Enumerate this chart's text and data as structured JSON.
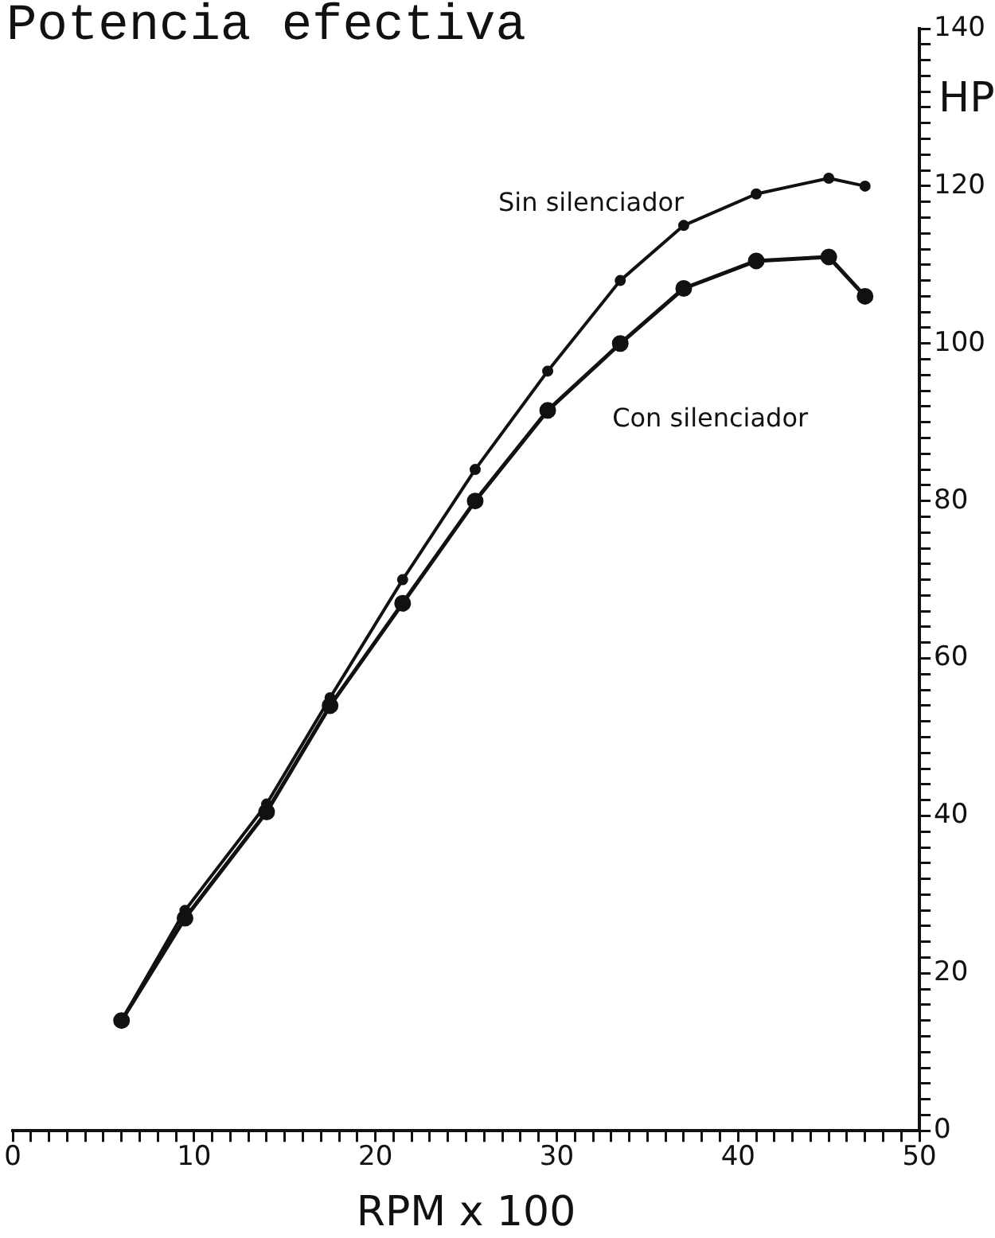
{
  "chart_data": {
    "type": "line",
    "title": "Potencia efectiva",
    "xlabel": "RPM x 100",
    "ylabel": "HP",
    "x": [
      6,
      9.5,
      14,
      17.5,
      21.5,
      25.5,
      29.5,
      33.5,
      37,
      41,
      45,
      47
    ],
    "series": [
      {
        "name": "Sin silenciador",
        "color": "#111111",
        "values": [
          14,
          28,
          41.5,
          55,
          70,
          84,
          96.5,
          108,
          115,
          119,
          121,
          120
        ]
      },
      {
        "name": "Con silenciador",
        "color": "#111111",
        "values": [
          14,
          27,
          40.5,
          54,
          67,
          80,
          91.5,
          100,
          107,
          110.5,
          111,
          106
        ]
      }
    ],
    "xlim": [
      0,
      50
    ],
    "ylim": [
      0,
      140
    ],
    "xticks": [
      0,
      {
        "value": 1,
        "label": null
      },
      {
        "value": 2,
        "label": null
      },
      {
        "value": 3,
        "label": null
      },
      {
        "value": 4,
        "label": null
      },
      {
        "value": 5,
        "label": null
      },
      {
        "value": 6,
        "label": null
      },
      {
        "value": 7,
        "label": null
      },
      {
        "value": 8,
        "label": null
      },
      {
        "value": 9,
        "label": null
      },
      10,
      {
        "value": 11,
        "label": null
      },
      {
        "value": 12,
        "label": null
      },
      {
        "value": 13,
        "label": null
      },
      {
        "value": 14,
        "label": null
      },
      {
        "value": 15,
        "label": null
      },
      {
        "value": 16,
        "label": null
      },
      {
        "value": 17,
        "label": null
      },
      {
        "value": 18,
        "label": null
      },
      {
        "value": 19,
        "label": null
      },
      20,
      {
        "value": 21,
        "label": null
      },
      {
        "value": 22,
        "label": null
      },
      {
        "value": 23,
        "label": null
      },
      {
        "value": 24,
        "label": null
      },
      {
        "value": 25,
        "label": null
      },
      {
        "value": 26,
        "label": null
      },
      {
        "value": 27,
        "label": null
      },
      {
        "value": 28,
        "label": null
      },
      {
        "value": 29,
        "label": null
      },
      30,
      {
        "value": 31,
        "label": null
      },
      {
        "value": 32,
        "label": null
      },
      {
        "value": 33,
        "label": null
      },
      {
        "value": 34,
        "label": null
      },
      {
        "value": 35,
        "label": null
      },
      {
        "value": 36,
        "label": null
      },
      {
        "value": 37,
        "label": null
      },
      {
        "value": 38,
        "label": null
      },
      {
        "value": 39,
        "label": null
      },
      40,
      {
        "value": 41,
        "label": null
      },
      {
        "value": 42,
        "label": null
      },
      {
        "value": 43,
        "label": null
      },
      {
        "value": 44,
        "label": null
      },
      {
        "value": 45,
        "label": null
      },
      {
        "value": 46,
        "label": null
      },
      {
        "value": 47,
        "label": null
      },
      {
        "value": 48,
        "label": null
      },
      {
        "value": 49,
        "label": null
      },
      50
    ],
    "yticks": [
      0,
      {
        "value": 2,
        "label": null
      },
      {
        "value": 4,
        "label": null
      },
      {
        "value": 6,
        "label": null
      },
      {
        "value": 8,
        "label": null
      },
      {
        "value": 10,
        "label": null
      },
      {
        "value": 12,
        "label": null
      },
      {
        "value": 14,
        "label": null
      },
      {
        "value": 16,
        "label": null
      },
      {
        "value": 18,
        "label": null
      },
      20,
      {
        "value": 22,
        "label": null
      },
      {
        "value": 24,
        "label": null
      },
      {
        "value": 26,
        "label": null
      },
      {
        "value": 28,
        "label": null
      },
      {
        "value": 30,
        "label": null
      },
      {
        "value": 32,
        "label": null
      },
      {
        "value": 34,
        "label": null
      },
      {
        "value": 36,
        "label": null
      },
      {
        "value": 38,
        "label": null
      },
      40,
      {
        "value": 42,
        "label": null
      },
      {
        "value": 44,
        "label": null
      },
      {
        "value": 46,
        "label": null
      },
      {
        "value": 48,
        "label": null
      },
      {
        "value": 50,
        "label": null
      },
      {
        "value": 52,
        "label": null
      },
      {
        "value": 54,
        "label": null
      },
      {
        "value": 56,
        "label": null
      },
      {
        "value": 58,
        "label": null
      },
      60,
      {
        "value": 62,
        "label": null
      },
      {
        "value": 64,
        "label": null
      },
      {
        "value": 66,
        "label": null
      },
      {
        "value": 68,
        "label": null
      },
      {
        "value": 70,
        "label": null
      },
      {
        "value": 72,
        "label": null
      },
      {
        "value": 74,
        "label": null
      },
      {
        "value": 76,
        "label": null
      },
      {
        "value": 78,
        "label": null
      },
      80,
      {
        "value": 82,
        "label": null
      },
      {
        "value": 84,
        "label": null
      },
      {
        "value": 86,
        "label": null
      },
      {
        "value": 88,
        "label": null
      },
      {
        "value": 90,
        "label": null
      },
      {
        "value": 92,
        "label": null
      },
      {
        "value": 94,
        "label": null
      },
      {
        "value": 96,
        "label": null
      },
      {
        "value": 98,
        "label": null
      },
      100,
      {
        "value": 102,
        "label": null
      },
      {
        "value": 104,
        "label": null
      },
      {
        "value": 106,
        "label": null
      },
      {
        "value": 108,
        "label": null
      },
      {
        "value": 110,
        "label": null
      },
      {
        "value": 112,
        "label": null
      },
      {
        "value": 114,
        "label": null
      },
      {
        "value": 116,
        "label": null
      },
      {
        "value": 118,
        "label": null
      },
      120,
      {
        "value": 122,
        "label": null
      },
      {
        "value": 124,
        "label": null
      },
      {
        "value": 126,
        "label": null
      },
      {
        "value": 128,
        "label": null
      },
      {
        "value": 130,
        "label": null
      },
      {
        "value": 132,
        "label": null
      },
      {
        "value": 134,
        "label": null
      },
      {
        "value": 136,
        "label": null
      },
      {
        "value": 138,
        "label": null
      },
      140
    ],
    "grid": false,
    "legend": false,
    "marker": "circle",
    "line_style": "solid"
  }
}
